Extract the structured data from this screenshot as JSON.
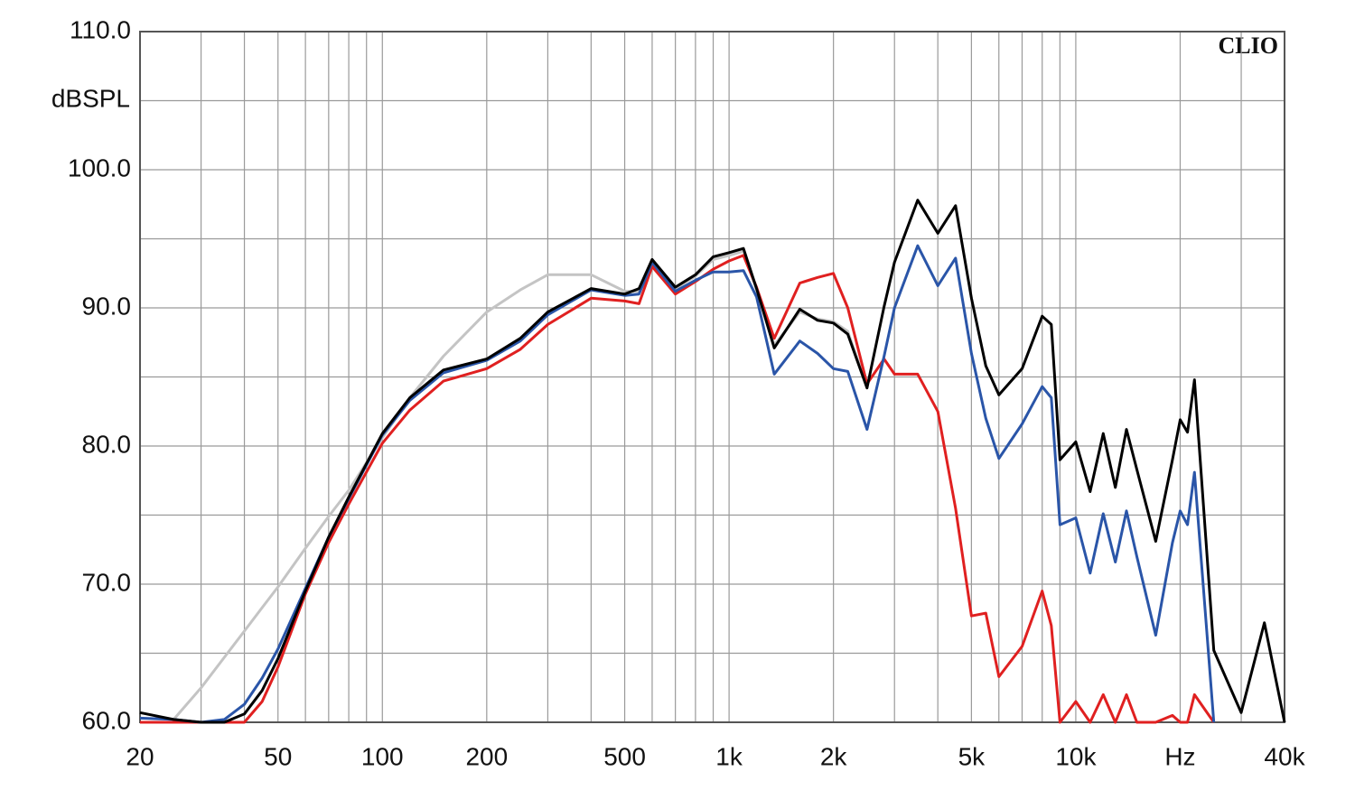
{
  "chart_data": {
    "type": "line",
    "ylabel": "dBSPL",
    "brand": "CLIO",
    "log_x": true,
    "grid": true,
    "x": [
      20,
      25,
      30,
      35,
      40,
      45,
      50,
      60,
      70,
      80,
      100,
      120,
      150,
      200,
      250,
      300,
      400,
      500,
      550,
      600,
      700,
      800,
      900,
      1000,
      1100,
      1200,
      1350,
      1600,
      1800,
      2000,
      2200,
      2500,
      2800,
      3000,
      3500,
      4000,
      4500,
      5000,
      5500,
      6000,
      7000,
      8000,
      8500,
      9000,
      10000,
      11000,
      12000,
      13000,
      14000,
      15000,
      17000,
      19000,
      20000,
      21000,
      22000,
      25000,
      30000,
      35000,
      40000
    ],
    "series": [
      {
        "color": "#c4c4c4",
        "values": [
          null,
          60.2,
          62.5,
          64.7,
          66.6,
          68.3,
          69.8,
          72.6,
          74.9,
          76.8,
          80.6,
          83.5,
          86.5,
          89.7,
          91.3,
          92.4,
          92.4,
          91.2,
          91.2,
          93.3,
          91.4,
          92.3,
          93.5,
          93.8,
          94.1,
          91.3,
          87.3,
          89.7,
          89.2,
          89.0,
          88.3,
          84.3,
          null,
          null,
          null,
          null,
          null,
          null,
          null,
          null,
          null,
          null,
          null,
          null,
          null,
          null,
          null,
          null,
          null,
          null,
          null,
          null,
          null,
          null,
          null,
          null,
          null,
          null,
          null
        ]
      },
      {
        "color": "#e02020",
        "values": [
          60,
          60,
          60,
          60,
          60,
          61.5,
          64,
          69.3,
          73,
          75.8,
          80.2,
          82.6,
          84.7,
          85.6,
          87,
          88.8,
          90.7,
          90.5,
          90.3,
          93.0,
          91.0,
          91.9,
          92.8,
          93.4,
          93.8,
          91.5,
          87.8,
          91.8,
          92.2,
          92.5,
          90,
          84.5,
          86.3,
          85.2,
          85.2,
          82.5,
          75.5,
          67.7,
          67.9,
          63.3,
          65.5,
          69.5,
          67,
          60,
          61.5,
          60,
          62,
          60,
          62,
          60,
          60,
          60.5,
          60,
          60,
          62,
          60,
          null,
          null,
          null
        ]
      },
      {
        "color": "#2a55a8",
        "values": [
          60.3,
          60.2,
          60,
          60.2,
          61.3,
          63.2,
          65.3,
          69.7,
          73.4,
          76.2,
          80.8,
          83.3,
          85.3,
          86.2,
          87.6,
          89.5,
          91.3,
          90.9,
          91,
          93.3,
          91.2,
          92,
          92.6,
          92.6,
          92.7,
          90.8,
          85.2,
          87.6,
          86.7,
          85.6,
          85.4,
          81.2,
          86.5,
          90,
          94.5,
          91.6,
          93.6,
          86.7,
          82,
          79.1,
          81.6,
          84.3,
          83.5,
          74.3,
          74.8,
          70.8,
          75.1,
          71.6,
          75.3,
          72,
          66.3,
          73,
          75.3,
          74.3,
          78.1,
          60,
          null,
          null,
          null
        ]
      },
      {
        "color": "#000000",
        "values": [
          60.7,
          60.2,
          60,
          60,
          60.6,
          62.3,
          64.6,
          69.5,
          73.4,
          76.3,
          80.9,
          83.5,
          85.5,
          86.3,
          87.8,
          89.7,
          91.4,
          91.0,
          91.4,
          93.5,
          91.5,
          92.4,
          93.7,
          94.0,
          94.3,
          91.4,
          87.1,
          89.9,
          89.1,
          88.9,
          88.1,
          84.2,
          90.1,
          93.3,
          97.8,
          95.4,
          97.4,
          90.7,
          85.8,
          83.7,
          85.6,
          89.4,
          88.8,
          79.0,
          80.3,
          76.7,
          80.9,
          77.0,
          81.2,
          78.3,
          73.1,
          79.0,
          81.9,
          81.0,
          84.8,
          65.2,
          60.7,
          67.2,
          60
        ]
      }
    ],
    "xlim": [
      20,
      40000
    ],
    "ylim": [
      60,
      110
    ],
    "xticks": [
      20,
      50,
      100,
      200,
      500,
      {
        "value": 1000,
        "label": "1k"
      },
      {
        "value": 2000,
        "label": "2k"
      },
      {
        "value": 5000,
        "label": "5k"
      },
      {
        "value": 10000,
        "label": "10k"
      },
      {
        "value": 20000,
        "label": "Hz"
      },
      {
        "value": 40000,
        "label": "40k"
      }
    ],
    "xminor": [
      30,
      40,
      60,
      70,
      80,
      90,
      300,
      400,
      600,
      700,
      800,
      900,
      3000,
      4000,
      6000,
      7000,
      8000,
      9000,
      30000
    ],
    "yticks": [
      {
        "value": 60,
        "label": "60.0"
      },
      {
        "value": 70,
        "label": "70.0"
      },
      {
        "value": 80,
        "label": "80.0"
      },
      {
        "value": 90,
        "label": "90.0"
      },
      {
        "value": 100,
        "label": "100.0"
      },
      {
        "value": 110,
        "label": "110.0"
      }
    ],
    "yminor": [
      65,
      75,
      85,
      95,
      105
    ]
  }
}
